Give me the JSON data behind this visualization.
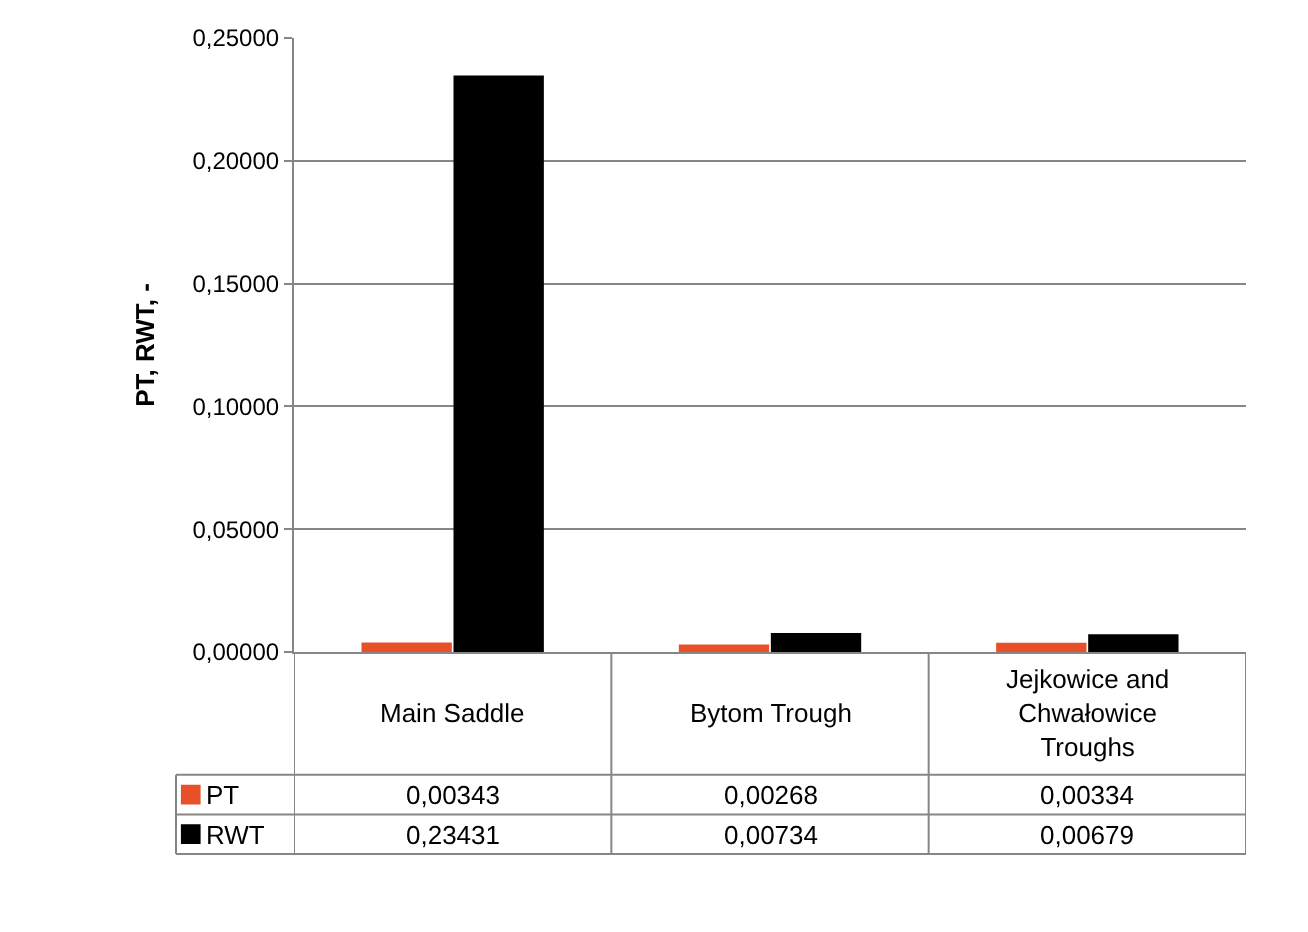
{
  "chart_data": {
    "type": "bar",
    "ylabel": "PT, RWT, -",
    "categories": [
      "Main Saddle",
      "Bytom Trough",
      "Jejkowice and Chwałowice Troughs"
    ],
    "series": [
      {
        "name": "PT",
        "color": "#e8502a",
        "values": [
          0.00343,
          0.00268,
          0.00334
        ],
        "value_labels": [
          "0,00343",
          "0,00268",
          "0,00334"
        ]
      },
      {
        "name": "RWT",
        "color": "#000000",
        "values": [
          0.23431,
          0.00734,
          0.00679
        ],
        "value_labels": [
          "0,23431",
          "0,00734",
          "0,00679"
        ]
      }
    ],
    "ylim": [
      0,
      0.25
    ],
    "yticks": [
      {
        "value": 0,
        "label": "0,00000"
      },
      {
        "value": 0.05,
        "label": "0,05000"
      },
      {
        "value": 0.1,
        "label": "0,10000"
      },
      {
        "value": 0.15,
        "label": "0,15000"
      },
      {
        "value": 0.2,
        "label": "0,20000"
      },
      {
        "value": 0.25,
        "label": "0,25000"
      }
    ],
    "grid": "y",
    "legend": "bottom"
  }
}
